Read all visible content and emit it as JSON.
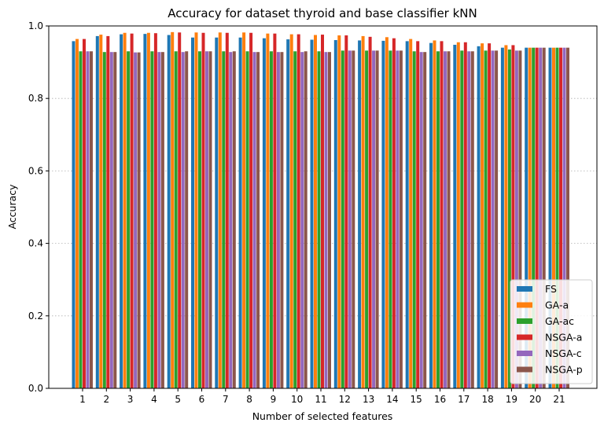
{
  "chart_data": {
    "type": "bar",
    "title": "Accuracy for dataset thyroid and base classifier kNN",
    "xlabel": "Number of selected features",
    "ylabel": "Accuracy",
    "ylim": [
      0,
      1
    ],
    "yticks": [
      "0.0",
      "0.2",
      "0.4",
      "0.6",
      "0.8",
      "1.0"
    ],
    "ytick_values": [
      0,
      0.2,
      0.4,
      0.6,
      0.8,
      1.0
    ],
    "grid": "horizontal dotted",
    "legend_position": "bottom-right",
    "categories": [
      "1",
      "2",
      "3",
      "4",
      "5",
      "6",
      "7",
      "8",
      "9",
      "10",
      "11",
      "12",
      "13",
      "14",
      "15",
      "16",
      "17",
      "18",
      "19",
      "20",
      "21"
    ],
    "series": [
      {
        "name": "FS",
        "color": "#1f77b4",
        "values": [
          0.958,
          0.972,
          0.977,
          0.978,
          0.975,
          0.968,
          0.968,
          0.968,
          0.966,
          0.963,
          0.962,
          0.961,
          0.96,
          0.959,
          0.958,
          0.953,
          0.948,
          0.944,
          0.94,
          0.94,
          0.94
        ]
      },
      {
        "name": "GA-a",
        "color": "#ff7f0e",
        "values": [
          0.964,
          0.976,
          0.981,
          0.981,
          0.983,
          0.982,
          0.982,
          0.982,
          0.979,
          0.977,
          0.975,
          0.974,
          0.972,
          0.969,
          0.964,
          0.96,
          0.955,
          0.952,
          0.947,
          0.94,
          0.94
        ]
      },
      {
        "name": "GA-ac",
        "color": "#2ca02c",
        "values": [
          0.93,
          0.928,
          0.93,
          0.93,
          0.93,
          0.93,
          0.93,
          0.93,
          0.93,
          0.93,
          0.93,
          0.932,
          0.932,
          0.932,
          0.93,
          0.93,
          0.932,
          0.932,
          0.935,
          0.94,
          0.94
        ]
      },
      {
        "name": "NSGA-a",
        "color": "#d62728",
        "values": [
          0.964,
          0.972,
          0.979,
          0.98,
          0.982,
          0.981,
          0.981,
          0.981,
          0.979,
          0.977,
          0.976,
          0.974,
          0.97,
          0.966,
          0.958,
          0.958,
          0.955,
          0.952,
          0.947,
          0.94,
          0.94
        ]
      },
      {
        "name": "NSGA-c",
        "color": "#9467bd",
        "values": [
          0.93,
          0.928,
          0.927,
          0.928,
          0.928,
          0.93,
          0.928,
          0.928,
          0.928,
          0.928,
          0.928,
          0.932,
          0.932,
          0.932,
          0.928,
          0.93,
          0.93,
          0.932,
          0.932,
          0.94,
          0.94
        ]
      },
      {
        "name": "NSGA-p",
        "color": "#8c564b",
        "values": [
          0.93,
          0.928,
          0.927,
          0.928,
          0.93,
          0.93,
          0.93,
          0.928,
          0.928,
          0.93,
          0.928,
          0.932,
          0.932,
          0.932,
          0.928,
          0.93,
          0.93,
          0.932,
          0.932,
          0.94,
          0.94
        ]
      }
    ]
  }
}
